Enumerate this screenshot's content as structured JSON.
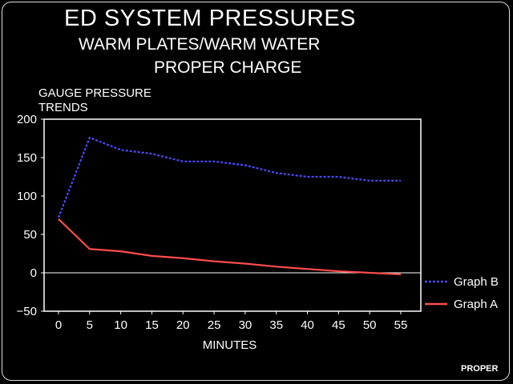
{
  "header": {
    "title": "ED SYSTEM PRESSURES",
    "subtitle_line1": "WARM PLATES/WARM WATER",
    "subtitle_line2": "PROPER CHARGE"
  },
  "footer": {
    "label": "PROPER"
  },
  "colors": {
    "background": "#000000",
    "graph_a": "#ff4c4c",
    "graph_b": "#4a4aff",
    "axis": "#ffffff"
  },
  "chart_data": {
    "type": "line",
    "ylabel": "GAUGE PRESSURE TRENDS",
    "xlabel": "MINUTES",
    "xlim": [
      0,
      55
    ],
    "ylim": [
      -50,
      200
    ],
    "x_ticks": [
      0,
      5,
      10,
      15,
      20,
      25,
      30,
      35,
      40,
      45,
      50,
      55
    ],
    "y_ticks": [
      -50,
      0,
      50,
      100,
      150,
      200
    ],
    "zero_line": true,
    "legend_position": "right-bottom",
    "x": [
      0,
      5,
      10,
      15,
      20,
      25,
      30,
      35,
      40,
      45,
      50,
      55
    ],
    "series": [
      {
        "name": "Graph B",
        "style": "dashed",
        "color": "#4a4aff",
        "values": [
          72,
          176,
          160,
          155,
          145,
          145,
          140,
          130,
          125,
          125,
          120,
          120
        ]
      },
      {
        "name": "Graph A",
        "style": "solid",
        "color": "#ff4c4c",
        "values": [
          70,
          31,
          28,
          22,
          19,
          15,
          12,
          8,
          5,
          2,
          0,
          -2
        ]
      }
    ]
  }
}
